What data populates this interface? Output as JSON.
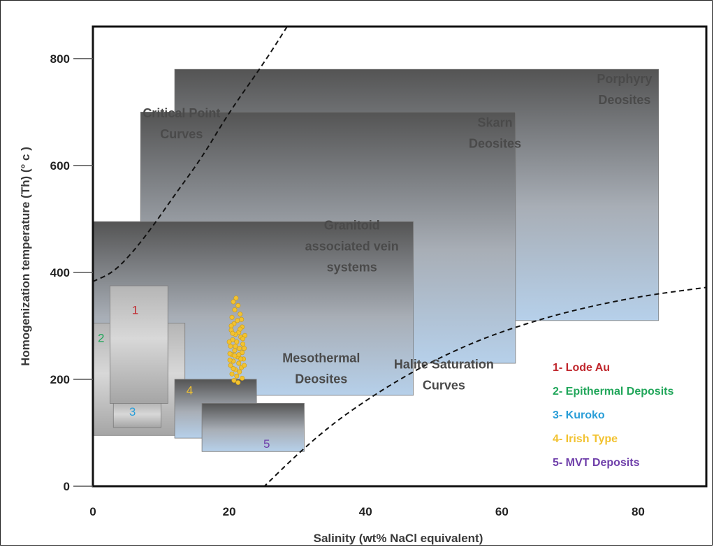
{
  "chart_data": {
    "type": "scatter",
    "xlabel": "Salinity (wt% NaCl equivalent)",
    "ylabel": "Homogenization temperature (Th) (° c )",
    "xlim": [
      0,
      90
    ],
    "ylim": [
      0,
      860
    ],
    "x_ticks": [
      {
        "value": 0,
        "label": "0"
      },
      {
        "value": 20,
        "label": "20"
      },
      {
        "value": 40,
        "label": "40"
      },
      {
        "value": 60,
        "label": "60"
      },
      {
        "value": 80,
        "label": "80"
      }
    ],
    "y_ticks": [
      {
        "value": 0,
        "label": "0"
      },
      {
        "value": 200,
        "label": "200"
      },
      {
        "value": 400,
        "label": "400"
      },
      {
        "value": 600,
        "label": "600"
      },
      {
        "value": 800,
        "label": "800"
      }
    ],
    "fields": [
      {
        "id": "porphyry",
        "label": [
          "Porphyry",
          "Deosites"
        ],
        "x": [
          12,
          83
        ],
        "y": [
          310,
          780
        ],
        "style": "gray-blue",
        "label_at": [
          78,
          762
        ],
        "anchor": "middle"
      },
      {
        "id": "skarn",
        "label": [
          "Skarn",
          "Deosites"
        ],
        "x": [
          7,
          62
        ],
        "y": [
          230,
          700
        ],
        "style": "gray-blue",
        "label_at": [
          59,
          680
        ],
        "anchor": "middle"
      },
      {
        "id": "granitoid",
        "label": [
          "Granitoid",
          "associated vein",
          "systems"
        ],
        "x": [
          0,
          47
        ],
        "y": [
          170,
          495
        ],
        "style": "gray-blue",
        "label_at": [
          38,
          488
        ],
        "anchor": "middle"
      },
      {
        "id": "field-2",
        "label": [],
        "x": [
          0,
          13.5
        ],
        "y": [
          95,
          305
        ],
        "style": "gray",
        "label_at": null,
        "anchor": "middle"
      },
      {
        "id": "field-1",
        "label": [],
        "x": [
          2.5,
          11
        ],
        "y": [
          155,
          375
        ],
        "style": "gray",
        "label_at": null,
        "anchor": "middle"
      },
      {
        "id": "field-3",
        "label": [],
        "x": [
          3,
          10
        ],
        "y": [
          110,
          155
        ],
        "style": "gray",
        "label_at": null,
        "anchor": "middle"
      },
      {
        "id": "field-4",
        "label": [],
        "x": [
          12,
          24
        ],
        "y": [
          90,
          200
        ],
        "style": "gray-blue",
        "label_at": null,
        "anchor": "middle"
      },
      {
        "id": "field-5",
        "label": [],
        "x": [
          16,
          31
        ],
        "y": [
          65,
          155
        ],
        "style": "gray-blue",
        "label_at": null,
        "anchor": "middle"
      }
    ],
    "curves": [
      {
        "id": "critical-point",
        "label": [
          "Critical Point",
          "Curves"
        ],
        "points": [
          [
            0,
            383
          ],
          [
            3,
            400
          ],
          [
            6,
            440
          ],
          [
            9,
            490
          ],
          [
            12,
            545
          ],
          [
            16,
            615
          ],
          [
            20,
            700
          ],
          [
            25,
            790
          ],
          [
            29,
            870
          ]
        ],
        "label_at": [
          13,
          698
        ]
      },
      {
        "id": "halite-saturation",
        "label": [
          "Halite Saturation",
          "Curves"
        ],
        "points": [
          [
            25,
            -2
          ],
          [
            30,
            60
          ],
          [
            35,
            115
          ],
          [
            40,
            160
          ],
          [
            45,
            200
          ],
          [
            50,
            235
          ],
          [
            56,
            270
          ],
          [
            62,
            298
          ],
          [
            70,
            328
          ],
          [
            80,
            355
          ],
          [
            90,
            372
          ]
        ],
        "label_at": [
          51.5,
          228
        ]
      }
    ],
    "field_numbers": [
      {
        "text": "1",
        "at": [
          6.2,
          330
        ],
        "color": "#c0272d"
      },
      {
        "text": "2",
        "at": [
          1.2,
          278
        ],
        "color": "#21a65a"
      },
      {
        "text": "3",
        "at": [
          5.8,
          140
        ],
        "color": "#2a9ed8"
      },
      {
        "text": "4",
        "at": [
          14.2,
          180
        ],
        "color": "#f2c230"
      },
      {
        "text": "5",
        "at": [
          25.5,
          80
        ],
        "color": "#6f3faa"
      }
    ],
    "mesothermal_label": {
      "lines": [
        "Mesothermal",
        "Deosites"
      ],
      "at": [
        33.5,
        240
      ]
    },
    "legend": [
      {
        "label": "1- Lode Au",
        "color": "#c0272d"
      },
      {
        "label": "2- Epithermal Deposits",
        "color": "#21a65a"
      },
      {
        "label": "3- Kuroko",
        "color": "#2a9ed8"
      },
      {
        "label": "4- Irish Type",
        "color": "#f2c230"
      },
      {
        "label": "5- MVT Deposits",
        "color": "#6f3faa"
      }
    ],
    "legend_placement": "lower-right",
    "scatter": {
      "name": "fluid inclusions",
      "color": "#f2c230",
      "points": [
        [
          21.0,
          352
        ],
        [
          20.6,
          345
        ],
        [
          21.3,
          338
        ],
        [
          20.8,
          330
        ],
        [
          21.6,
          322
        ],
        [
          20.4,
          316
        ],
        [
          21.2,
          310
        ],
        [
          20.7,
          304
        ],
        [
          21.9,
          298
        ],
        [
          20.3,
          292
        ],
        [
          21.4,
          288
        ],
        [
          20.9,
          284
        ],
        [
          21.7,
          279
        ],
        [
          20.5,
          274
        ],
        [
          21.1,
          270
        ],
        [
          22.0,
          266
        ],
        [
          20.2,
          262
        ],
        [
          21.5,
          258
        ],
        [
          20.8,
          254
        ],
        [
          21.9,
          250
        ],
        [
          20.4,
          246
        ],
        [
          21.2,
          242
        ],
        [
          22.1,
          238
        ],
        [
          20.6,
          234
        ],
        [
          21.4,
          230
        ],
        [
          20.2,
          226
        ],
        [
          21.8,
          222
        ],
        [
          20.9,
          218
        ],
        [
          21.5,
          214
        ],
        [
          20.4,
          210
        ],
        [
          21.1,
          206
        ],
        [
          21.9,
          202
        ],
        [
          20.7,
          198
        ],
        [
          21.3,
          194
        ],
        [
          20.1,
          248
        ],
        [
          22.2,
          258
        ],
        [
          20.0,
          270
        ],
        [
          22.3,
          282
        ],
        [
          21.6,
          294
        ],
        [
          20.1,
          236
        ],
        [
          22.2,
          226
        ],
        [
          20.5,
          286
        ],
        [
          21.8,
          312
        ],
        [
          20.3,
          300
        ],
        [
          22.0,
          276
        ],
        [
          20.9,
          262
        ],
        [
          21.4,
          246
        ],
        [
          20.6,
          220
        ],
        [
          21.7,
          238
        ],
        [
          20.8,
          244
        ]
      ]
    }
  }
}
